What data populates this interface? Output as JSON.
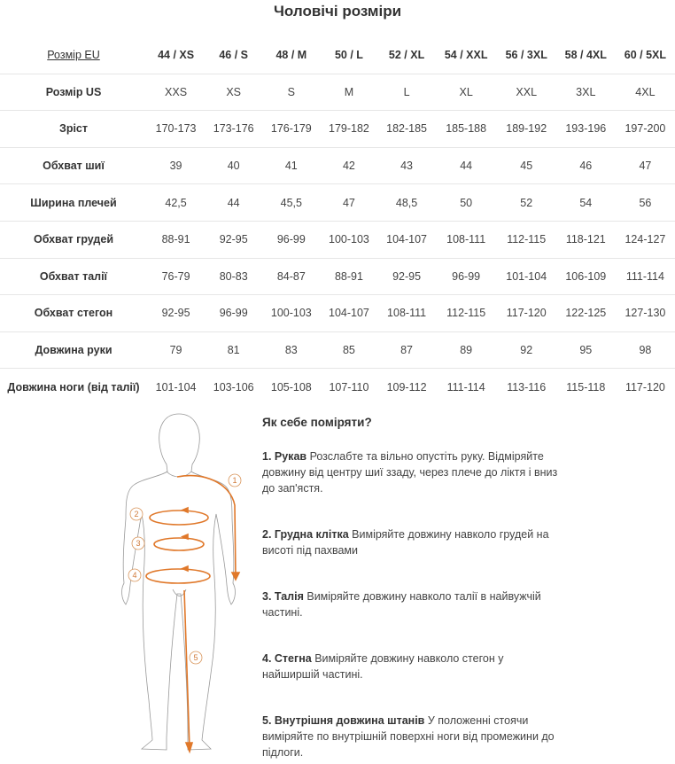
{
  "title": "Чоловічі розміри",
  "table": {
    "header": {
      "label": "Розмір EU",
      "values": [
        "44 / XS",
        "46 / S",
        "48 / M",
        "50 / L",
        "52 / XL",
        "54 / XXL",
        "56 / 3XL",
        "58 / 4XL",
        "60 / 5XL"
      ]
    },
    "rows": [
      {
        "label": "Розмір US",
        "values": [
          "XXS",
          "XS",
          "S",
          "M",
          "L",
          "XL",
          "XXL",
          "3XL",
          "4XL"
        ]
      },
      {
        "label": "Зріст",
        "values": [
          "170-173",
          "173-176",
          "176-179",
          "179-182",
          "182-185",
          "185-188",
          "189-192",
          "193-196",
          "197-200"
        ]
      },
      {
        "label": "Обхват шиї",
        "values": [
          "39",
          "40",
          "41",
          "42",
          "43",
          "44",
          "45",
          "46",
          "47"
        ]
      },
      {
        "label": "Ширина плечей",
        "values": [
          "42,5",
          "44",
          "45,5",
          "47",
          "48,5",
          "50",
          "52",
          "54",
          "56"
        ]
      },
      {
        "label": "Обхват грудей",
        "values": [
          "88-91",
          "92-95",
          "96-99",
          "100-103",
          "104-107",
          "108-111",
          "112-115",
          "118-121",
          "124-127"
        ]
      },
      {
        "label": "Обхват талії",
        "values": [
          "76-79",
          "80-83",
          "84-87",
          "88-91",
          "92-95",
          "96-99",
          "101-104",
          "106-109",
          "111-114"
        ]
      },
      {
        "label": "Обхват стегон",
        "values": [
          "92-95",
          "96-99",
          "100-103",
          "104-107",
          "108-111",
          "112-115",
          "117-120",
          "122-125",
          "127-130"
        ]
      },
      {
        "label": "Довжина руки",
        "values": [
          "79",
          "81",
          "83",
          "85",
          "87",
          "89",
          "92",
          "95",
          "98"
        ]
      },
      {
        "label": "Довжина ноги (від талії)",
        "values": [
          "101-104",
          "103-106",
          "105-108",
          "107-110",
          "109-112",
          "111-114",
          "113-116",
          "115-118",
          "117-120"
        ]
      }
    ]
  },
  "figure": {
    "markers": [
      "1",
      "2",
      "3",
      "4",
      "5"
    ],
    "accent": "#e0782a"
  },
  "guide": {
    "title": "Як себе поміряти?",
    "items": [
      {
        "term": "1. Рукав",
        "text": " Розслабте та вільно опустіть руку. Відміряйте довжину від центру шиї ззаду, через плече до ліктя і вниз до зап'ястя."
      },
      {
        "term": "2. Грудна клітка",
        "text": " Виміряйте довжину навколо грудей на висоті під пахвами"
      },
      {
        "term": "3. Талія",
        "text": " Виміряйте довжину навколо талії в найвужчій частині."
      },
      {
        "term": "4. Стегна",
        "text": " Виміряйте довжину навколо стегон у найширшій частині."
      },
      {
        "term": "5. Внутрішня довжина штанів",
        "text": " У положенні стоячи виміряйте по внутрішній поверхні ноги від промежини до підлоги."
      }
    ]
  }
}
